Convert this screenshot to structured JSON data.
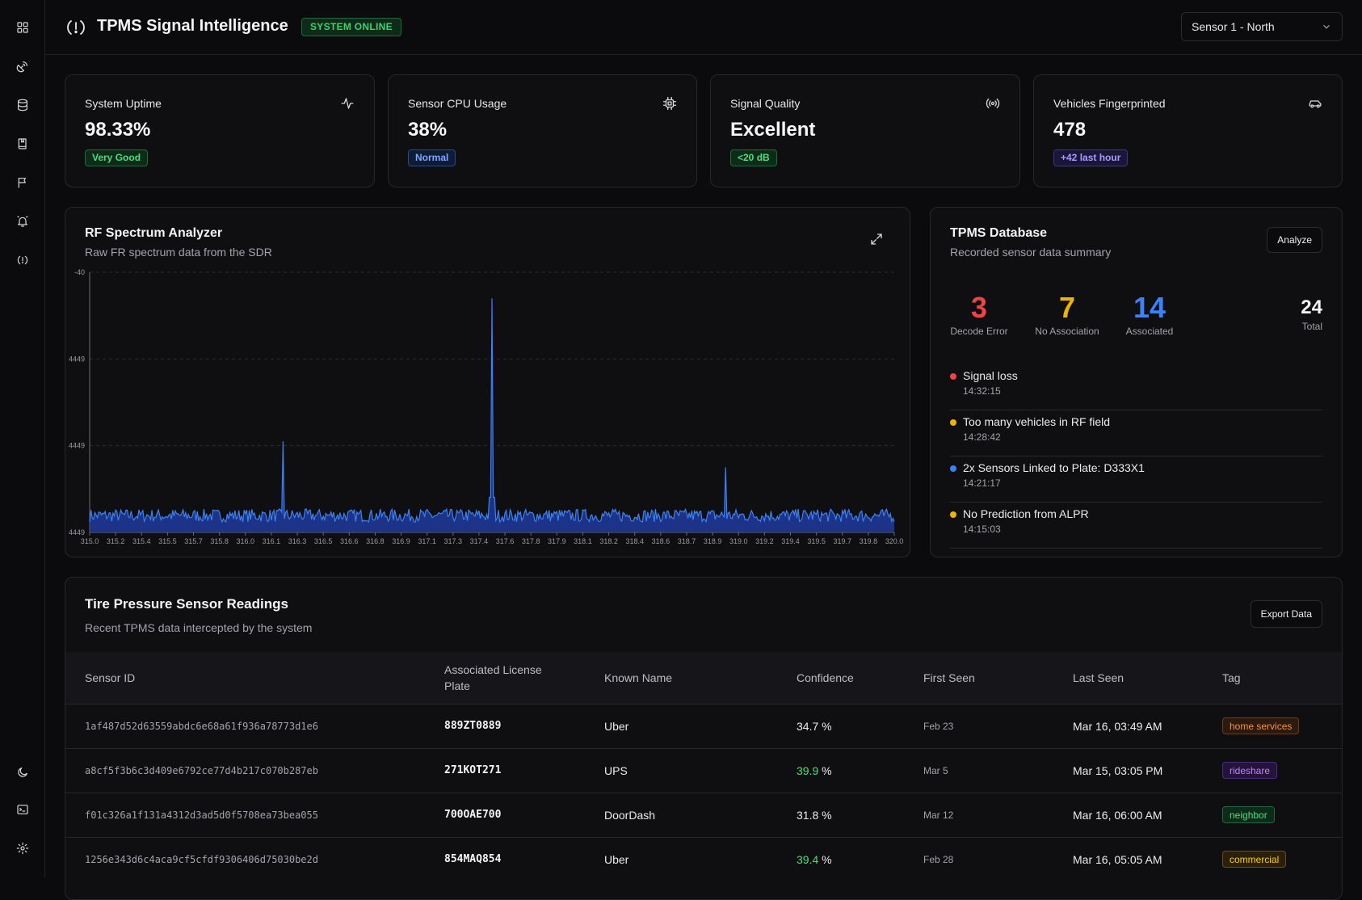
{
  "app": {
    "title": "TPMS Signal Intelligence",
    "status": "SYSTEM ONLINE"
  },
  "sensor_select": {
    "value": "Sensor 1 - North"
  },
  "sidebar": {
    "top_icons": [
      "dashboard-icon",
      "satellite-dish-icon",
      "database-icon",
      "book-icon",
      "flag-icon",
      "bell-icon",
      "tire-alert-icon"
    ],
    "bottom_icons": [
      "moon-icon",
      "terminal-icon",
      "settings-icon"
    ]
  },
  "stats": [
    {
      "label": "System Uptime",
      "value": "98.33%",
      "pill": "Very Good",
      "pill_color": "green",
      "icon": "activity-icon"
    },
    {
      "label": "Sensor CPU Usage",
      "value": "38%",
      "pill": "Normal",
      "pill_color": "blue",
      "icon": "cpu-icon"
    },
    {
      "label": "Signal Quality",
      "value": "Excellent",
      "pill": "<20 dB",
      "pill_color": "green",
      "icon": "radio-signal-icon"
    },
    {
      "label": "Vehicles Fingerprinted",
      "value": "478",
      "pill": "+42 last hour",
      "pill_color": "purple",
      "icon": "car-icon"
    }
  ],
  "spectrum": {
    "title": "RF Spectrum Analyzer",
    "subtitle": "Raw FR spectrum data from the SDR"
  },
  "chart_data": {
    "type": "line",
    "title": "",
    "xlabel": "",
    "ylabel": "",
    "x_ticks": [
      "315.0",
      "315.2",
      "315.4",
      "315.5",
      "315.7",
      "315.8",
      "316.0",
      "316.1",
      "316.3",
      "316.5",
      "316.6",
      "316.8",
      "316.9",
      "317.1",
      "317.3",
      "317.4",
      "317.6",
      "317.8",
      "317.9",
      "318.1",
      "318.2",
      "318.4",
      "318.6",
      "318.7",
      "318.9",
      "319.0",
      "319.2",
      "319.4",
      "319.5",
      "319.7",
      "319.8",
      "320.0"
    ],
    "y_ticks": [
      "-40",
      "4449",
      "4449",
      "4449"
    ],
    "xlim": [
      315.0,
      320.0
    ],
    "noise_floor_fraction": 0.04,
    "noise_amplitude_fraction": 0.05,
    "peaks": [
      {
        "x": 316.2,
        "level_fraction": 0.35
      },
      {
        "x": 317.5,
        "level_fraction": 0.9
      },
      {
        "x": 318.95,
        "level_fraction": 0.25
      }
    ],
    "line_color": "#3b82f6",
    "fill_color": "#1e3a9e",
    "grid": "dashed horizontal"
  },
  "database": {
    "title": "TPMS Database",
    "subtitle": "Recorded sensor data summary",
    "analyze_label": "Analyze",
    "counts": [
      {
        "num": "3",
        "label": "Decode Error",
        "color": "#ef4444"
      },
      {
        "num": "7",
        "label": "No Association",
        "color": "#eab308"
      },
      {
        "num": "14",
        "label": "Associated",
        "color": "#3b82f6"
      }
    ],
    "total": {
      "num": "24",
      "label": "Total"
    },
    "events": [
      {
        "title": "Signal loss",
        "time": "14:32:15",
        "color": "#ef4444"
      },
      {
        "title": "Too many vehicles in RF field",
        "time": "14:28:42",
        "color": "#eab308"
      },
      {
        "title": "2x Sensors Linked to Plate: D333X1",
        "time": "14:21:17",
        "color": "#3b82f6"
      },
      {
        "title": "No Prediction from ALPR",
        "time": "14:15:03",
        "color": "#eab308"
      }
    ]
  },
  "readings": {
    "title": "Tire Pressure Sensor Readings",
    "subtitle": "Recent TPMS data intercepted by the system",
    "export_label": "Export Data",
    "columns": [
      "Sensor ID",
      "Associated License Plate",
      "Known Name",
      "Confidence",
      "First Seen",
      "Last Seen",
      "Tag"
    ],
    "rows": [
      {
        "sensor_id": "1af487d52d63559abdc6e68a61f936a78773d1e6",
        "plate": "889ZT0889",
        "name": "Uber",
        "confidence": "34.7",
        "conf_unit": " %",
        "conf_high": false,
        "first_seen": "Feb 23",
        "last_seen": "Mar 16, 03:49 AM",
        "tag": "home services",
        "tag_bg": "#2a1a10",
        "tag_border": "#6b3a1f",
        "tag_fg": "#fb923c"
      },
      {
        "sensor_id": "a8cf5f3b6c3d409e6792ce77d4b217c070b287eb",
        "plate": "271KOT271",
        "name": "UPS",
        "confidence": "39.9",
        "conf_unit": " %",
        "conf_high": true,
        "first_seen": "Mar 5",
        "last_seen": "Mar 15, 03:05 PM",
        "tag": "rideshare",
        "tag_bg": "#24133a",
        "tag_border": "#4c2a7a",
        "tag_fg": "#c084fc"
      },
      {
        "sensor_id": "f01c326a1f131a4312d3ad5d0f5708ea73bea055",
        "plate": "700OAE700",
        "name": "DoorDash",
        "confidence": "31.8",
        "conf_unit": " %",
        "conf_high": false,
        "first_seen": "Mar 12",
        "last_seen": "Mar 16, 06:00 AM",
        "tag": "neighbor",
        "tag_bg": "#0e2a18",
        "tag_border": "#1f6b3a",
        "tag_fg": "#4ade80"
      },
      {
        "sensor_id": "1256e343d6c4aca9cf5cfdf9306406d75030be2d",
        "plate": "854MAQ854",
        "name": "Uber",
        "confidence": "39.4",
        "conf_unit": " %",
        "conf_high": true,
        "first_seen": "Feb 28",
        "last_seen": "Mar 16, 05:05 AM",
        "tag": "commercial",
        "tag_bg": "#2a1f0a",
        "tag_border": "#6b4f1a",
        "tag_fg": "#facc15"
      }
    ]
  }
}
